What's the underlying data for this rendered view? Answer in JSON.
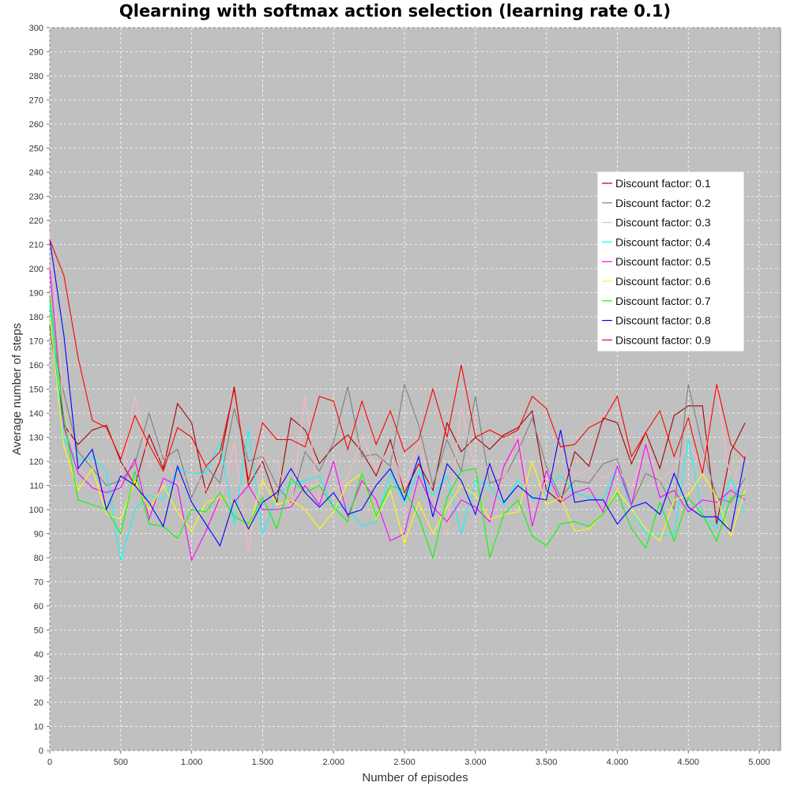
{
  "chart_data": {
    "type": "line",
    "title": "Qlearning with softmax action selection (learning rate 0.1)",
    "xlabel": "Number of episodes",
    "ylabel": "Average number of steps",
    "xlim": [
      0,
      5150
    ],
    "ylim": [
      0,
      300
    ],
    "x_ticks": [
      0,
      500,
      1000,
      1500,
      2000,
      2500,
      3000,
      3500,
      4000,
      4500,
      5000
    ],
    "x_tick_labels": [
      "0",
      "500",
      "1.000",
      "1.500",
      "2.000",
      "2.500",
      "3.000",
      "3.500",
      "4.000",
      "4.500",
      "5.000"
    ],
    "y_ticks": [
      0,
      10,
      20,
      30,
      40,
      50,
      60,
      70,
      80,
      90,
      100,
      110,
      120,
      130,
      140,
      150,
      160,
      170,
      180,
      190,
      200,
      210,
      220,
      230,
      240,
      250,
      260,
      270,
      280,
      290,
      300
    ],
    "grid": true,
    "legend_position": "right",
    "plot_background": "#c0c0c0",
    "x": [
      0,
      100,
      200,
      300,
      400,
      500,
      600,
      700,
      800,
      900,
      1000,
      1100,
      1200,
      1300,
      1400,
      1500,
      1600,
      1700,
      1800,
      1900,
      2000,
      2100,
      2200,
      2300,
      2400,
      2500,
      2600,
      2700,
      2800,
      2900,
      3000,
      3100,
      3200,
      3300,
      3400,
      3500,
      3600,
      3700,
      3800,
      3900,
      4000,
      4100,
      4200,
      4300,
      4400,
      4500,
      4600,
      4700,
      4800,
      4900
    ],
    "series": [
      {
        "name": "Discount factor: 0.1",
        "color": "#aa0000",
        "values": [
          176,
          135,
          127,
          133,
          135,
          120,
          110,
          131,
          117,
          144,
          136,
          107,
          120,
          151,
          110,
          120,
          103,
          138,
          133,
          119,
          126,
          131,
          124,
          114,
          129,
          107,
          119,
          108,
          136,
          124,
          130,
          125,
          131,
          134,
          141,
          108,
          103,
          124,
          118,
          138,
          136,
          119,
          132,
          117,
          139,
          143,
          143,
          94,
          124,
          136
        ]
      },
      {
        "name": "Discount factor: 0.2",
        "color": "#808080",
        "values": [
          175,
          148,
          124,
          117,
          110,
          112,
          119,
          140,
          121,
          125,
          105,
          118,
          111,
          142,
          120,
          122,
          110,
          103,
          124,
          116,
          128,
          151,
          122,
          123,
          118,
          152,
          135,
          110,
          129,
          116,
          147,
          111,
          113,
          124,
          138,
          118,
          105,
          112,
          111,
          119,
          121,
          102,
          115,
          112,
          100,
          152,
          126,
          105,
          103,
          113
        ]
      },
      {
        "name": "Discount factor: 0.3",
        "color": "#ffb6c1",
        "values": [
          215,
          141,
          118,
          111,
          104,
          110,
          147,
          118,
          124,
          110,
          116,
          108,
          102,
          128,
          83,
          123,
          120,
          100,
          147,
          104,
          108,
          113,
          130,
          117,
          126,
          109,
          129,
          106,
          89,
          143,
          116,
          118,
          112,
          131,
          100,
          112,
          125,
          114,
          117,
          113,
          117,
          109,
          125,
          112,
          117,
          127,
          118,
          151,
          110,
          124
        ]
      },
      {
        "name": "Discount factor: 0.4",
        "color": "#00ffff",
        "values": [
          185,
          129,
          120,
          122,
          116,
          79,
          100,
          106,
          104,
          117,
          115,
          115,
          128,
          94,
          133,
          90,
          105,
          111,
          112,
          114,
          101,
          101,
          93,
          95,
          115,
          103,
          116,
          106,
          114,
          90,
          112,
          110,
          102,
          112,
          104,
          108,
          114,
          107,
          105,
          104,
          118,
          100,
          90,
          89,
          90,
          129,
          98,
          92,
          113,
          98
        ]
      },
      {
        "name": "Discount factor: 0.5",
        "color": "#ff00ff",
        "values": [
          200,
          134,
          115,
          109,
          107,
          109,
          121,
          96,
          113,
          110,
          79,
          91,
          105,
          103,
          110,
          100,
          100,
          101,
          110,
          102,
          120,
          97,
          112,
          104,
          87,
          90,
          114,
          101,
          95,
          104,
          101,
          95,
          118,
          129,
          93,
          116,
          103,
          107,
          109,
          99,
          118,
          102,
          127,
          105,
          108,
          99,
          104,
          103,
          108,
          104
        ]
      },
      {
        "name": "Discount factor: 0.6",
        "color": "#ffff00",
        "values": [
          180,
          126,
          108,
          117,
          98,
          96,
          112,
          100,
          110,
          99,
          91,
          103,
          105,
          103,
          92,
          112,
          102,
          104,
          100,
          92,
          99,
          111,
          115,
          96,
          108,
          86,
          103,
          90,
          101,
          110,
          106,
          96,
          98,
          99,
          120,
          102,
          105,
          91,
          92,
          98,
          108,
          100,
          92,
          87,
          104,
          106,
          115,
          105,
          89,
          108
        ]
      },
      {
        "name": "Discount factor: 0.7",
        "color": "#00ff00",
        "values": [
          188,
          138,
          104,
          102,
          100,
          90,
          116,
          94,
          93,
          88,
          100,
          99,
          107,
          97,
          94,
          105,
          92,
          113,
          107,
          110,
          101,
          95,
          115,
          97,
          110,
          108,
          97,
          80,
          105,
          116,
          117,
          80,
          98,
          104,
          89,
          85,
          94,
          95,
          93,
          98,
          107,
          92,
          84,
          103,
          87,
          105,
          98,
          87,
          105,
          106
        ]
      },
      {
        "name": "Discount factor: 0.8",
        "color": "#0000ff",
        "values": [
          212,
          172,
          117,
          125,
          100,
          114,
          110,
          103,
          93,
          118,
          103,
          94,
          85,
          104,
          92,
          103,
          107,
          117,
          107,
          101,
          107,
          98,
          100,
          110,
          117,
          104,
          122,
          97,
          119,
          112,
          98,
          119,
          103,
          110,
          105,
          104,
          133,
          103,
          104,
          104,
          94,
          101,
          103,
          98,
          115,
          101,
          97,
          97,
          91,
          122
        ]
      },
      {
        "name": "Discount factor: 0.9",
        "color": "#ff0000",
        "values": [
          212,
          197,
          163,
          137,
          134,
          121,
          139,
          127,
          116,
          134,
          130,
          118,
          124,
          150,
          112,
          136,
          129,
          129,
          126,
          147,
          145,
          125,
          145,
          127,
          141,
          124,
          129,
          150,
          130,
          160,
          130,
          133,
          130,
          133,
          147,
          142,
          126,
          127,
          134,
          137,
          147,
          122,
          132,
          141,
          122,
          138,
          115,
          152,
          127,
          121
        ]
      }
    ]
  }
}
